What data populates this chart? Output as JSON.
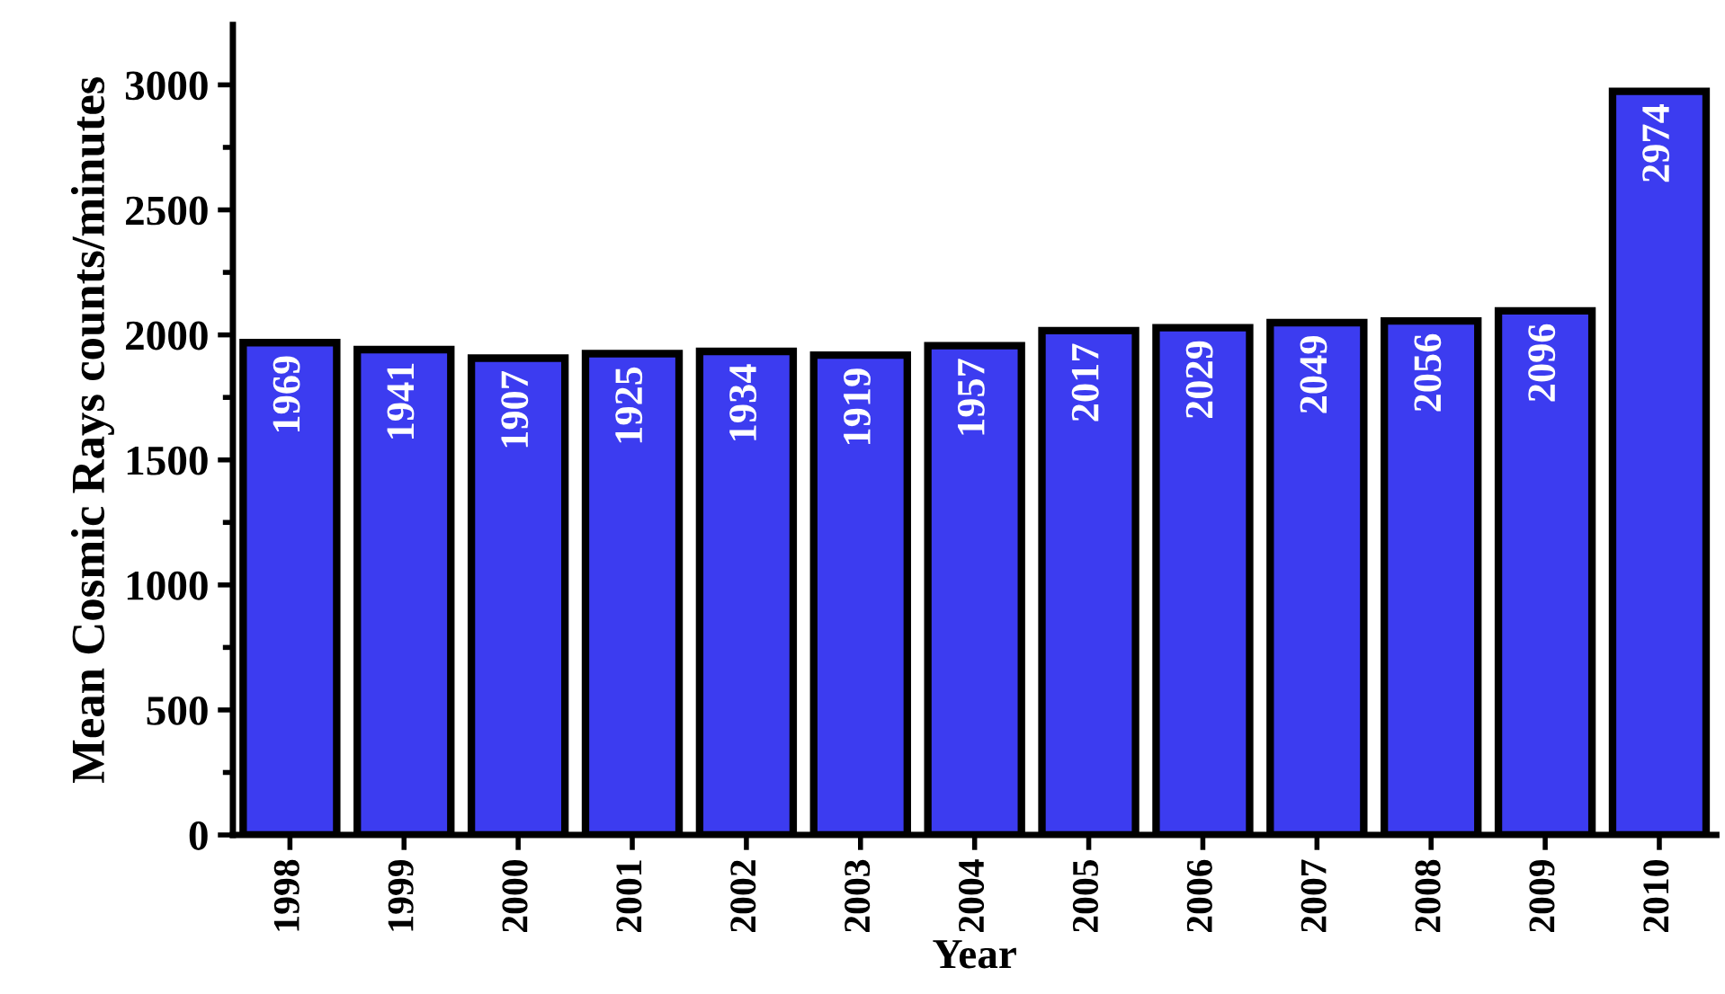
{
  "chart_data": {
    "type": "bar",
    "xlabel": "Year",
    "ylabel": "Mean Cosmic Rays counts/minutes",
    "categories": [
      "1998",
      "1999",
      "2000",
      "2001",
      "2002",
      "2003",
      "2004",
      "2005",
      "2006",
      "2007",
      "2008",
      "2009",
      "2010"
    ],
    "values": [
      1969,
      1941,
      1907,
      1925,
      1934,
      1919,
      1957,
      2017,
      2029,
      2049,
      2056,
      2096,
      2974
    ],
    "color": "#3c3cf0",
    "data_labels": true,
    "grid": false,
    "legend": false,
    "ylim": [
      0,
      3240
    ],
    "yticks": [
      0,
      500,
      1000,
      1500,
      2000,
      2500,
      3000
    ]
  }
}
